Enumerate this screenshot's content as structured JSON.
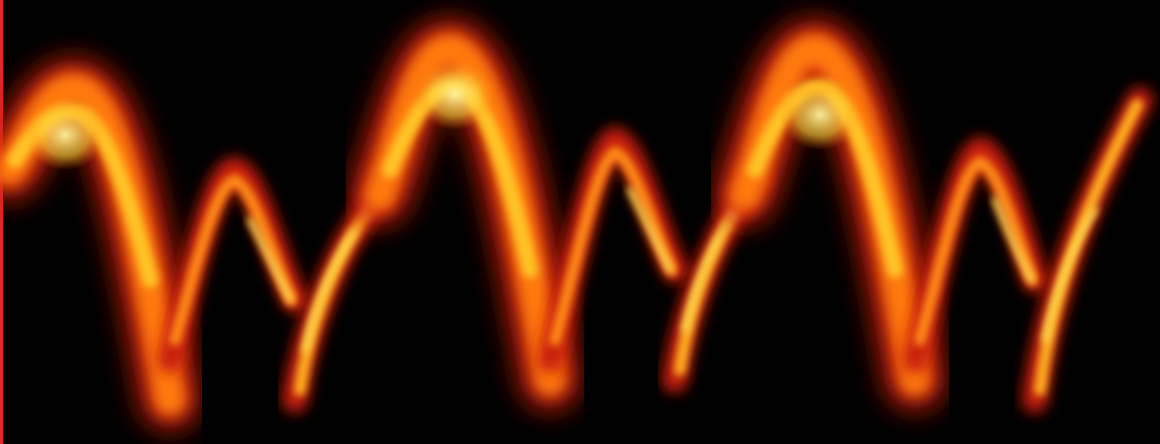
{
  "image": {
    "subject": "glowing-waveform",
    "colors": {
      "background": "#000000",
      "edge_line": "#e8232a",
      "outer": "#c81e0a",
      "mid": "#ff7a10",
      "core": "#ffe45a"
    },
    "pattern_repeats": 3
  }
}
